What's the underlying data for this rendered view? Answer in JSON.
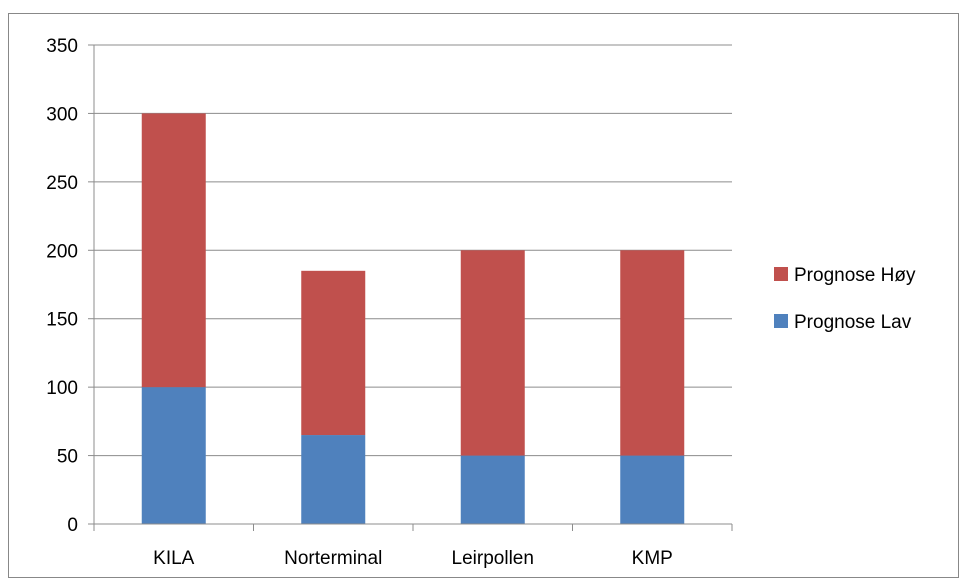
{
  "chart_data": {
    "type": "bar",
    "stacked": true,
    "categories": [
      "KILA",
      "Norterminal",
      "Leirpollen",
      "KMP"
    ],
    "series": [
      {
        "name": "Prognose Lav",
        "values": [
          100,
          65,
          50,
          50
        ],
        "color": "#4F81BD"
      },
      {
        "name": "Prognose Høy",
        "values": [
          200,
          120,
          150,
          150
        ],
        "color": "#C0504D"
      }
    ],
    "title": "",
    "xlabel": "",
    "ylabel": "",
    "ylim": [
      0,
      350
    ],
    "yticks": [
      0,
      50,
      100,
      150,
      200,
      250,
      300,
      350
    ],
    "grid": true,
    "legend_position": "right",
    "legend_order": [
      "Prognose Høy",
      "Prognose Lav"
    ]
  }
}
